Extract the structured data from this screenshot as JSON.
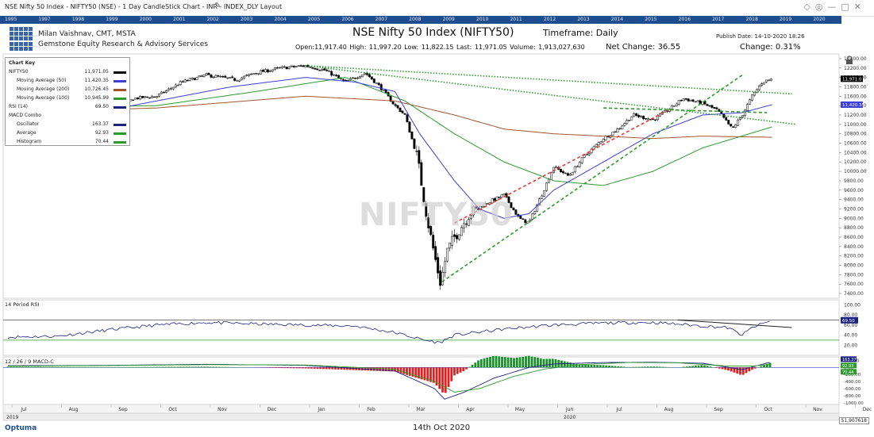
{
  "window": {
    "title": "NSE Nifty 50 Index - NIFTY50 (NSE) - 1 Day CandleStick Chart - INR - INDEX_DLY Layout"
  },
  "year_bar": [
    "1995",
    "1997",
    "1998",
    "1999",
    "2000",
    "2001",
    "2002",
    "2003",
    "2004",
    "2005",
    "2006",
    "2007",
    "2008",
    "2009",
    "2010",
    "2011",
    "2012",
    "2013",
    "2014",
    "2015",
    "2016",
    "2017",
    "2018",
    "2019",
    "2020"
  ],
  "header": {
    "author": "Milan Vaishnav, CMT, MSTA",
    "firm": "Gemstone Equity Research & Advisory Services",
    "title": "NSE Nifty 50 Index (NIFTY50)",
    "timeframe": "Timeframe: Daily",
    "publish_date": "Publish Date: 14-10-2020 18:26",
    "ohlc": "Open:11,917.40   High: 11,997.20   Low: 11,822.15   Last: 11,971.05   Volume: 1,913,027,630",
    "net_change": "Net Change: 36.55",
    "change": "Change: 0.31%"
  },
  "legend": {
    "title": "Chart Key",
    "items": [
      {
        "name": "NIFTY50",
        "value": "11,971.05",
        "color": "#000000",
        "indent": false
      },
      {
        "name": "Moving Average (50)",
        "value": "11,420.35",
        "color": "#3b3fd8",
        "indent": true
      },
      {
        "name": "Moving Average (200)",
        "value": "10,726.45",
        "color": "#a0522d",
        "indent": true
      },
      {
        "name": "Moving Average (100)",
        "value": "10,945.99",
        "color": "#2e9a2e",
        "indent": true
      },
      {
        "name": "RSI (14)",
        "value": "69.50",
        "color": "#1a237e",
        "indent": false
      },
      {
        "name": "MACD Combo",
        "value": "",
        "color": "",
        "indent": false
      },
      {
        "name": "Oscillator",
        "value": "163.37",
        "color": "#1a237e",
        "indent": true
      },
      {
        "name": "Average",
        "value": "92.93",
        "color": "#2e9a2e",
        "indent": true
      },
      {
        "name": "Histogram",
        "value": "70.44",
        "color": "#2e9a2e",
        "indent": true
      }
    ]
  },
  "watermark": "NIFTY50",
  "rsi_panel": {
    "title": "14 Period RSI"
  },
  "macd_panel": {
    "title": "12 / 26 / 9 MACD-C"
  },
  "footer": {
    "date": "14th Oct 2020",
    "brand": "Optuma",
    "last_value": "51,907618"
  },
  "chart_data": [
    {
      "type": "candlestick",
      "title": "NSE Nifty 50 Index (NIFTY50)",
      "months": [
        "Jul",
        "Aug",
        "Sep",
        "Oct",
        "Nov",
        "Dec",
        "Jan",
        "Feb",
        "Mar",
        "Apr",
        "May",
        "Jun",
        "Jul",
        "Aug",
        "Sep",
        "Oct",
        "Nov",
        "Dec"
      ],
      "year_labels": [
        "2019",
        "2020"
      ],
      "y_ticks": [
        12400,
        12200,
        12000,
        11800,
        11600,
        11400,
        11200,
        11000,
        10800,
        10600,
        10400,
        10200,
        10000,
        9800,
        9600,
        9400,
        9200,
        9000,
        8800,
        8600,
        8400,
        8200,
        8000,
        7800,
        7600,
        7400
      ],
      "ylim": [
        7300,
        12500
      ],
      "key_points": [
        {
          "month": 0.0,
          "close": 11400
        },
        {
          "month": 0.6,
          "close": 11100
        },
        {
          "month": 1.0,
          "close": 10950
        },
        {
          "month": 1.6,
          "close": 11000
        },
        {
          "month": 2.0,
          "close": 10900
        },
        {
          "month": 2.5,
          "close": 11550
        },
        {
          "month": 3.0,
          "close": 11600
        },
        {
          "month": 3.5,
          "close": 11900
        },
        {
          "month": 4.0,
          "close": 12050
        },
        {
          "month": 4.6,
          "close": 11950
        },
        {
          "month": 5.0,
          "close": 12100
        },
        {
          "month": 5.5,
          "close": 12200
        },
        {
          "month": 6.0,
          "close": 12250
        },
        {
          "month": 6.4,
          "close": 12150
        },
        {
          "month": 6.8,
          "close": 11900
        },
        {
          "month": 7.2,
          "close": 12100
        },
        {
          "month": 7.5,
          "close": 11800
        },
        {
          "month": 7.8,
          "close": 11400
        },
        {
          "month": 8.0,
          "close": 11200
        },
        {
          "month": 8.25,
          "close": 10300
        },
        {
          "month": 8.45,
          "close": 9000
        },
        {
          "month": 8.6,
          "close": 8200
        },
        {
          "month": 8.72,
          "close": 7610
        },
        {
          "month": 8.85,
          "close": 8300
        },
        {
          "month": 9.0,
          "close": 8600
        },
        {
          "month": 9.3,
          "close": 9100
        },
        {
          "month": 9.6,
          "close": 9300
        },
        {
          "month": 10.0,
          "close": 9500
        },
        {
          "month": 10.3,
          "close": 9000
        },
        {
          "month": 10.5,
          "close": 8900
        },
        {
          "month": 10.8,
          "close": 9600
        },
        {
          "month": 11.0,
          "close": 10100
        },
        {
          "month": 11.3,
          "close": 9900
        },
        {
          "month": 11.6,
          "close": 10300
        },
        {
          "month": 12.0,
          "close": 10700
        },
        {
          "month": 12.3,
          "close": 10900
        },
        {
          "month": 12.6,
          "close": 11200
        },
        {
          "month": 13.0,
          "close": 11100
        },
        {
          "month": 13.3,
          "close": 11300
        },
        {
          "month": 13.6,
          "close": 11550
        },
        {
          "month": 14.0,
          "close": 11450
        },
        {
          "month": 14.3,
          "close": 11300
        },
        {
          "month": 14.6,
          "close": 10900
        },
        {
          "month": 14.8,
          "close": 11200
        },
        {
          "month": 15.0,
          "close": 11600
        },
        {
          "month": 15.2,
          "close": 11900
        },
        {
          "month": 15.4,
          "close": 11971
        }
      ],
      "ma50": [
        [
          0,
          11650
        ],
        [
          1.5,
          11200
        ],
        [
          3,
          11500
        ],
        [
          4.5,
          11800
        ],
        [
          6,
          12000
        ],
        [
          7,
          11900
        ],
        [
          7.8,
          11700
        ],
        [
          8.3,
          10800
        ],
        [
          9,
          9800
        ],
        [
          9.5,
          9200
        ],
        [
          10,
          9000
        ],
        [
          10.5,
          9100
        ],
        [
          11,
          9600
        ],
        [
          12,
          10200
        ],
        [
          13,
          10800
        ],
        [
          14,
          11200
        ],
        [
          14.8,
          11250
        ],
        [
          15.4,
          11420
        ]
      ],
      "ma200": [
        [
          0,
          11250
        ],
        [
          3,
          11350
        ],
        [
          6,
          11600
        ],
        [
          7.8,
          11500
        ],
        [
          9,
          11200
        ],
        [
          10,
          10900
        ],
        [
          11,
          10800
        ],
        [
          12,
          10750
        ],
        [
          13,
          10700
        ],
        [
          14,
          10750
        ],
        [
          15.4,
          10726
        ]
      ],
      "ma100": [
        [
          0,
          11350
        ],
        [
          3,
          11400
        ],
        [
          5,
          11700
        ],
        [
          6.8,
          12000
        ],
        [
          8,
          11500
        ],
        [
          9,
          10800
        ],
        [
          10,
          10200
        ],
        [
          11,
          9800
        ],
        [
          12,
          9700
        ],
        [
          13,
          10000
        ],
        [
          14,
          10500
        ],
        [
          15.4,
          10946
        ]
      ],
      "trendlines": [
        {
          "style": "dotted",
          "color": "#2e9a2e",
          "from": [
            6.0,
            12250
          ],
          "to": [
            15.9,
            11000
          ]
        },
        {
          "style": "dotted",
          "color": "#2e9a2e",
          "from": [
            6.0,
            12250
          ],
          "to": [
            15.8,
            11650
          ]
        },
        {
          "style": "dashed",
          "color": "#e53935",
          "from": [
            9.0,
            8900
          ],
          "to": [
            13.3,
            11300
          ]
        },
        {
          "style": "dashed",
          "color": "#2e9a2e",
          "from": [
            8.75,
            7650
          ],
          "to": [
            14.8,
            12050
          ]
        },
        {
          "style": "dashed",
          "color": "#2e9a2e",
          "from": [
            12.0,
            11350
          ],
          "to": [
            15.3,
            11250
          ]
        }
      ]
    },
    {
      "type": "line",
      "title": "14 Period RSI",
      "y_ticks": [
        100,
        80,
        60,
        40,
        20
      ],
      "ylim": [
        0,
        110
      ],
      "levels": [
        70,
        30
      ],
      "series": [
        {
          "name": "RSI (14)",
          "values": [
            [
              0,
              36
            ],
            [
              1,
              38
            ],
            [
              2,
              50
            ],
            [
              3,
              60
            ],
            [
              4,
              65
            ],
            [
              5,
              62
            ],
            [
              6,
              60
            ],
            [
              7,
              58
            ],
            [
              7.8,
              45
            ],
            [
              8.4,
              30
            ],
            [
              8.7,
              25
            ],
            [
              9,
              40
            ],
            [
              10,
              52
            ],
            [
              11,
              60
            ],
            [
              12,
              64
            ],
            [
              13,
              65
            ],
            [
              13.5,
              62
            ],
            [
              14,
              58
            ],
            [
              14.5,
              55
            ],
            [
              14.8,
              40
            ],
            [
              15,
              55
            ],
            [
              15.4,
              69.5
            ]
          ]
        }
      ],
      "trendline": {
        "from": [
          13.5,
          70
        ],
        "to": [
          15.8,
          55
        ]
      }
    },
    {
      "type": "line",
      "title": "12 / 26 / 9 MACD-C",
      "y_ticks": [
        200,
        0,
        -200,
        -400,
        -600,
        -800,
        -1000
      ],
      "ylim": [
        -1050,
        300
      ],
      "series": [
        {
          "name": "Oscillator",
          "values": [
            [
              0,
              50
            ],
            [
              2,
              60
            ],
            [
              4,
              90
            ],
            [
              6,
              60
            ],
            [
              7.8,
              -100
            ],
            [
              8.6,
              -600
            ],
            [
              8.8,
              -900
            ],
            [
              9.2,
              -700
            ],
            [
              9.8,
              -300
            ],
            [
              10.5,
              0
            ],
            [
              11,
              100
            ],
            [
              12,
              140
            ],
            [
              13,
              150
            ],
            [
              14,
              120
            ],
            [
              14.8,
              -60
            ],
            [
              15.4,
              163
            ]
          ]
        },
        {
          "name": "Average",
          "values": [
            [
              0,
              40
            ],
            [
              2,
              55
            ],
            [
              4,
              80
            ],
            [
              6,
              70
            ],
            [
              7.8,
              -50
            ],
            [
              8.6,
              -400
            ],
            [
              9,
              -700
            ],
            [
              9.5,
              -600
            ],
            [
              10.2,
              -250
            ],
            [
              10.8,
              -50
            ],
            [
              11.5,
              80
            ],
            [
              12.5,
              140
            ],
            [
              13.5,
              135
            ],
            [
              14.5,
              40
            ],
            [
              15,
              40
            ],
            [
              15.4,
              93
            ]
          ]
        }
      ]
    }
  ]
}
